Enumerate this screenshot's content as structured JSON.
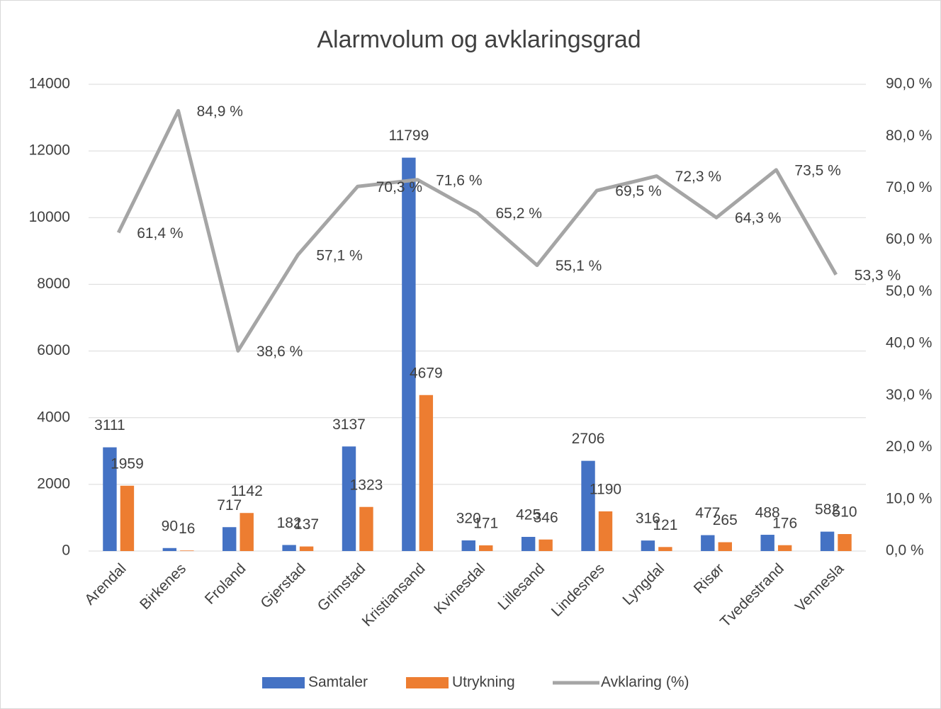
{
  "chart_data": {
    "type": "combo",
    "title": "Alarmvolum og avklaringsgrad",
    "categories": [
      "Arendal",
      "Birkenes",
      "Froland",
      "Gjerstad",
      "Grimstad",
      "Kristiansand",
      "Kvinesdal",
      "Lillesand",
      "Lindesnes",
      "Lyngdal",
      "Risør",
      "Tvedestrand",
      "Vennesla"
    ],
    "series": [
      {
        "name": "Samtaler",
        "type": "bar",
        "color": "#4472c4",
        "values": [
          3111,
          90,
          717,
          182,
          3137,
          11799,
          320,
          425,
          2706,
          316,
          477,
          488,
          582
        ]
      },
      {
        "name": "Utrykning",
        "type": "bar",
        "color": "#ed7d31",
        "values": [
          1959,
          16,
          1142,
          137,
          1323,
          4679,
          171,
          346,
          1190,
          121,
          265,
          176,
          510
        ]
      },
      {
        "name": "Avklaring (%)",
        "type": "line",
        "axis": "y2",
        "color": "#a5a5a5",
        "values": [
          61.4,
          84.9,
          38.6,
          57.1,
          70.3,
          71.6,
          65.2,
          55.1,
          69.5,
          72.3,
          64.3,
          73.5,
          53.3
        ],
        "value_labels": [
          "61,4 %",
          "84,9 %",
          "38,6 %",
          "57,1 %",
          "70,3 %",
          "71,6 %",
          "65,2 %",
          "55,1 %",
          "69,5 %",
          "72,3 %",
          "64,3 %",
          "73,5 %",
          "53,3 %"
        ]
      }
    ],
    "ylim": [
      0,
      14000
    ],
    "yticks": [
      0,
      2000,
      4000,
      6000,
      8000,
      10000,
      12000,
      14000
    ],
    "y2lim": [
      0,
      90
    ],
    "y2ticks": [
      {
        "value": 0,
        "label": "0,0 %"
      },
      {
        "value": 10,
        "label": "10,0 %"
      },
      {
        "value": 20,
        "label": "20,0 %"
      },
      {
        "value": 30,
        "label": "30,0 %"
      },
      {
        "value": 40,
        "label": "40,0 %"
      },
      {
        "value": 50,
        "label": "50,0 %"
      },
      {
        "value": 60,
        "label": "60,0 %"
      },
      {
        "value": 70,
        "label": "70,0 %"
      },
      {
        "value": 80,
        "label": "80,0 %"
      },
      {
        "value": 90,
        "label": "90,0 %"
      }
    ],
    "grid": true,
    "legend": "bottom"
  }
}
